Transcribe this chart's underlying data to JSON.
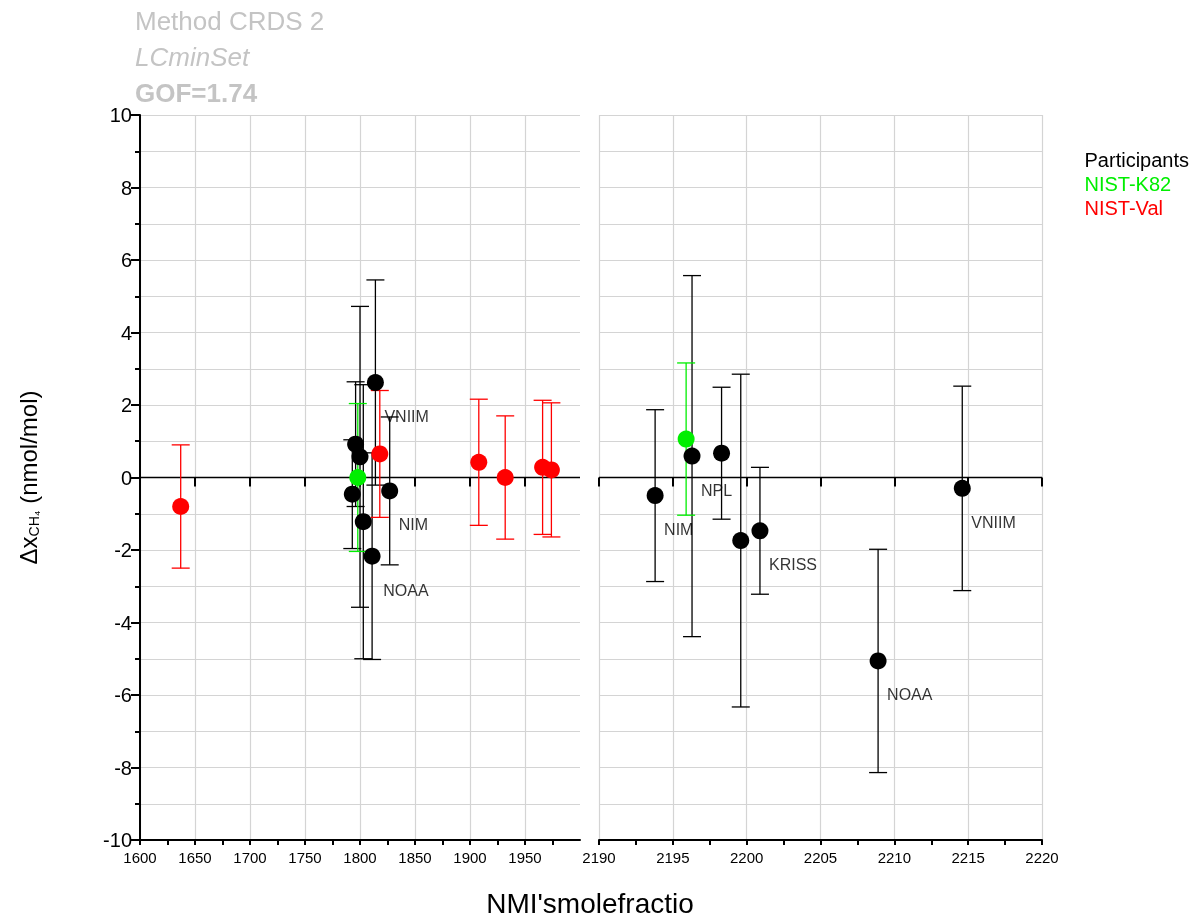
{
  "chart_data": [
    {
      "type": "scatter",
      "title": "Method CRDS 2",
      "subtitle": "LCminSet",
      "ylabel": "Δx$_{CH₄}$ (nmol/mol)",
      "annotations": [
        "GOF=1.74",
        {
          "text": "VNIIM",
          "x": 1814,
          "y": 2.62
        },
        {
          "text": "NIM",
          "x": 1827,
          "y": -0.37
        },
        {
          "text": "NOAA",
          "x": 1813,
          "y": -2.17
        }
      ],
      "series": [
        {
          "name": "Participants",
          "color": "#000000",
          "x": [
            1796,
            1800,
            1793,
            1803,
            1814,
            1811,
            1827
          ],
          "values": [
            0.92,
            0.57,
            -0.46,
            -1.22,
            2.62,
            -2.17,
            -0.37
          ],
          "errors": [
            1.72,
            4.15,
            1.5,
            3.78,
            2.83,
            2.85,
            2.04
          ]
        },
        {
          "name": "NIST-K82",
          "color": "#00ee00",
          "x": [
            1798
          ],
          "values": [
            0.0
          ],
          "errors": [
            2.04
          ]
        },
        {
          "name": "NIST-Val",
          "color": "#ff0000",
          "x": [
            1637,
            1818,
            1908,
            1932,
            1966,
            1974
          ],
          "values": [
            -0.8,
            0.65,
            0.42,
            0.0,
            0.28,
            0.21
          ],
          "errors": [
            1.7,
            1.75,
            1.74,
            1.7,
            1.85,
            1.85
          ]
        }
      ],
      "xlim": [
        1600,
        2000
      ],
      "xticks": [
        1600,
        {
          "value": 1625,
          "label": null
        },
        1650,
        {
          "value": 1675,
          "label": null
        },
        1700,
        {
          "value": 1725,
          "label": null
        },
        1750,
        {
          "value": 1775,
          "label": null
        },
        1800,
        {
          "value": 1825,
          "label": null
        },
        1850,
        {
          "value": 1875,
          "label": null
        },
        1900,
        {
          "value": 1925,
          "label": null
        },
        1950,
        {
          "value": 1975,
          "label": null
        }
      ],
      "ylim": [
        -10,
        10
      ],
      "yticks": [
        -10,
        {
          "value": -9,
          "label": null
        },
        -8,
        {
          "value": -7,
          "label": null
        },
        -6,
        {
          "value": -5,
          "label": null
        },
        -4,
        {
          "value": -3,
          "label": null
        },
        -2,
        {
          "value": -1,
          "label": null
        },
        0,
        {
          "value": 1,
          "label": null
        },
        2,
        {
          "value": 3,
          "label": null
        },
        4,
        {
          "value": 5,
          "label": null
        },
        6,
        {
          "value": 7,
          "label": null
        },
        8,
        {
          "value": 9,
          "label": null
        },
        10
      ],
      "ref_lines": [
        {
          "axis": "y",
          "value": 0,
          "color": "#000000"
        }
      ],
      "grid": true,
      "marker": "circle",
      "legend": "top right"
    },
    {
      "type": "scatter",
      "xlabel": "NMI'smolefractio",
      "annotations": [
        {
          "text": "NIM",
          "x": 2193.8,
          "y": -0.5
        },
        {
          "text": "NPL",
          "x": 2196.3,
          "y": 0.59
        },
        {
          "text": "KRISS",
          "x": 2200.9,
          "y": -1.47
        },
        {
          "text": "NOAA",
          "x": 2208.9,
          "y": -5.06
        },
        {
          "text": "VNIIM",
          "x": 2214.6,
          "y": -0.3
        }
      ],
      "series": [
        {
          "color": "#000000",
          "x": [
            2193.8,
            2196.3,
            2198.3,
            2199.6,
            2200.9,
            2208.9,
            2214.6
          ],
          "values": [
            -0.5,
            0.59,
            0.67,
            -1.74,
            -1.47,
            -5.06,
            -0.3
          ],
          "errors": [
            2.37,
            4.98,
            1.82,
            4.59,
            1.75,
            3.08,
            2.82
          ]
        },
        {
          "color": "#00ee00",
          "x": [
            2195.9
          ],
          "values": [
            1.06
          ],
          "errors": [
            2.1
          ]
        }
      ],
      "xlim": [
        2190,
        2220
      ],
      "xticks": [
        2190,
        {
          "value": 2192.5,
          "label": null
        },
        2195,
        {
          "value": 2197.5,
          "label": null
        },
        2200,
        {
          "value": 2202.5,
          "label": null
        },
        2205,
        {
          "value": 2207.5,
          "label": null
        },
        2210,
        {
          "value": 2212.5,
          "label": null
        },
        2215,
        {
          "value": 2217.5,
          "label": null
        },
        2220
      ],
      "ylim": [
        -10,
        10
      ],
      "yticks": [
        -10,
        {
          "value": -9,
          "label": null
        },
        -8,
        {
          "value": -7,
          "label": null
        },
        -6,
        {
          "value": -5,
          "label": null
        },
        -4,
        {
          "value": -3,
          "label": null
        },
        -2,
        {
          "value": -1,
          "label": null
        },
        0,
        {
          "value": 1,
          "label": null
        },
        2,
        {
          "value": 3,
          "label": null
        },
        4,
        {
          "value": 5,
          "label": null
        },
        6,
        {
          "value": 7,
          "label": null
        },
        8,
        {
          "value": 9,
          "label": null
        },
        10
      ],
      "ref_lines": [
        {
          "axis": "y",
          "value": 0,
          "color": "#000000"
        }
      ],
      "tick_labels": "x",
      "grid": true,
      "marker": "circle"
    }
  ]
}
